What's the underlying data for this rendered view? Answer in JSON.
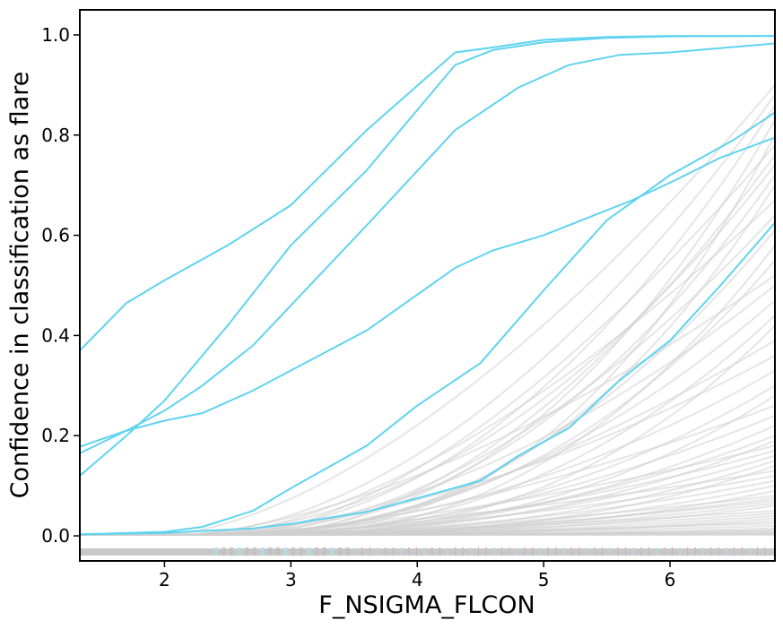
{
  "chart_data": {
    "type": "line",
    "xlabel": "F_NSIGMA_FLCON",
    "ylabel": "Confidence in classification as flare",
    "xlim": [
      1.33,
      6.83
    ],
    "ylim": [
      -0.05,
      1.05
    ],
    "xticks": [
      2,
      3,
      4,
      5,
      6
    ],
    "yticks": [
      0.0,
      0.2,
      0.4,
      0.6,
      0.8,
      1.0
    ],
    "xtick_labels": [
      "2",
      "3",
      "4",
      "5",
      "6"
    ],
    "ytick_labels": [
      "0.0",
      "0.2",
      "0.4",
      "0.6",
      "0.8",
      "1.0"
    ],
    "grid": false,
    "colors": {
      "highlight": "#5fd3f0",
      "background": "#d0d0d0",
      "rug_gray": "#c8c8c8",
      "rug_blue": "#a8e6f7"
    },
    "highlight_series": [
      {
        "x": [
          1.33,
          1.7,
          2.0,
          2.5,
          3.0,
          3.6,
          4.3,
          4.6,
          5.0,
          5.5,
          6.0,
          6.83
        ],
        "y": [
          0.37,
          0.465,
          0.51,
          0.58,
          0.66,
          0.81,
          0.965,
          0.975,
          0.99,
          0.996,
          0.998,
          0.998
        ]
      },
      {
        "x": [
          1.33,
          1.7,
          2.0,
          2.5,
          3.0,
          3.6,
          4.3,
          4.6,
          5.0,
          5.5,
          6.0,
          6.83
        ],
        "y": [
          0.12,
          0.2,
          0.27,
          0.42,
          0.58,
          0.73,
          0.94,
          0.97,
          0.985,
          0.994,
          0.997,
          0.998
        ]
      },
      {
        "x": [
          1.33,
          1.7,
          2.0,
          2.3,
          2.7,
          3.0,
          3.6,
          4.3,
          4.8,
          5.2,
          5.6,
          6.0,
          6.83
        ],
        "y": [
          0.165,
          0.21,
          0.25,
          0.3,
          0.38,
          0.46,
          0.62,
          0.81,
          0.895,
          0.94,
          0.96,
          0.965,
          0.983
        ]
      },
      {
        "x": [
          1.33,
          1.7,
          2.0,
          2.3,
          2.7,
          3.0,
          3.6,
          4.3,
          4.6,
          5.0,
          5.4,
          5.7,
          6.0,
          6.4,
          6.83
        ],
        "y": [
          0.178,
          0.21,
          0.23,
          0.245,
          0.29,
          0.33,
          0.41,
          0.535,
          0.57,
          0.6,
          0.64,
          0.67,
          0.705,
          0.755,
          0.795
        ]
      },
      {
        "x": [
          1.33,
          2.0,
          2.3,
          2.7,
          3.0,
          3.6,
          4.0,
          4.5,
          5.0,
          5.5,
          6.0,
          6.5,
          6.83
        ],
        "y": [
          0.003,
          0.008,
          0.018,
          0.05,
          0.095,
          0.18,
          0.26,
          0.345,
          0.49,
          0.63,
          0.72,
          0.79,
          0.845
        ]
      },
      {
        "x": [
          1.33,
          2.0,
          2.7,
          3.0,
          3.6,
          4.0,
          4.5,
          4.8,
          5.2,
          5.6,
          6.0,
          6.4,
          6.83
        ],
        "y": [
          0.003,
          0.006,
          0.015,
          0.024,
          0.048,
          0.075,
          0.11,
          0.16,
          0.215,
          0.31,
          0.39,
          0.5,
          0.625
        ]
      }
    ],
    "background_series_final_values": [
      0.9,
      0.88,
      0.86,
      0.83,
      0.8,
      0.78,
      0.76,
      0.74,
      0.72,
      0.7,
      0.67,
      0.64,
      0.61,
      0.58,
      0.55,
      0.52,
      0.5,
      0.47,
      0.44,
      0.42,
      0.39,
      0.36,
      0.33,
      0.3,
      0.28,
      0.26,
      0.24,
      0.22,
      0.2,
      0.19,
      0.18,
      0.17,
      0.16,
      0.15,
      0.14,
      0.13,
      0.12,
      0.11,
      0.1,
      0.09,
      0.08,
      0.075,
      0.07,
      0.065,
      0.06,
      0.05,
      0.045,
      0.04,
      0.035,
      0.03,
      0.025,
      0.02,
      0.015,
      0.012,
      0.01,
      0.008,
      0.006,
      0.004,
      0.003,
      0.002
    ]
  }
}
